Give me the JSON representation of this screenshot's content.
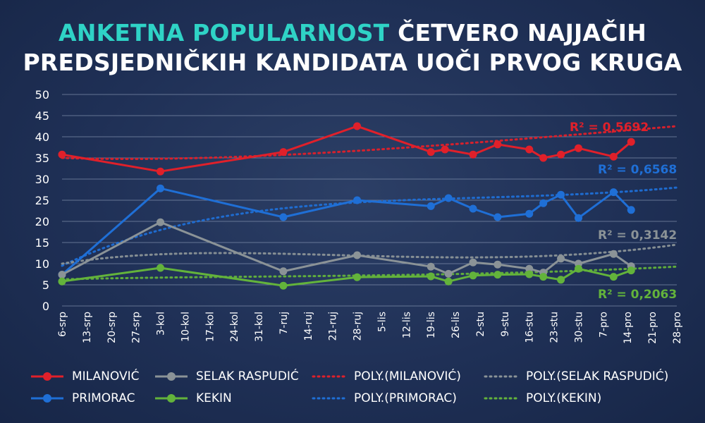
{
  "title": {
    "accent": "ANKETNA POPULARNOST",
    "line1_rest": "ČETVERO NAJJAČIH",
    "line2": "PREDSJEDNIČKIH KANDIDATA UOČI PRVOG KRUGA"
  },
  "colors": {
    "milanovic": "#e0202a",
    "primorac": "#1f6fd6",
    "selak": "#8b9397",
    "kekin": "#63b33b",
    "grid": "#8a99b5",
    "text": "#ffffff"
  },
  "chart_data": {
    "type": "line",
    "ylim": [
      0,
      50
    ],
    "yticks": [
      0,
      5,
      10,
      15,
      20,
      25,
      30,
      35,
      40,
      45,
      50
    ],
    "xticks": [
      "6-srp",
      "13-srp",
      "20-srp",
      "27-srp",
      "3-kol",
      "10-kol",
      "17-kol",
      "24-kol",
      "31-kol",
      "7-ruj",
      "14-ruj",
      "21-ruj",
      "28-ruj",
      "5-lis",
      "12-lis",
      "19-lis",
      "26-lis",
      "2-stu",
      "9-stu",
      "16-stu",
      "23-stu",
      "30-stu",
      "7-pro",
      "14-pro",
      "21-pro",
      "28-pro"
    ],
    "x_unit": "day of 2024 (0 = 6-srp)",
    "series": [
      {
        "name": "MILANOVIĆ",
        "color_key": "milanovic",
        "points": [
          [
            0,
            35.8
          ],
          [
            28,
            31.8
          ],
          [
            63,
            36.4
          ],
          [
            84,
            42.5
          ],
          [
            105,
            36.4
          ],
          [
            109,
            37.0
          ],
          [
            117,
            35.8
          ],
          [
            124,
            38.2
          ],
          [
            133,
            37.0
          ],
          [
            137,
            35.0
          ],
          [
            142,
            35.8
          ],
          [
            147,
            37.3
          ],
          [
            157,
            35.3
          ],
          [
            162,
            38.8
          ]
        ],
        "trend": {
          "name": "POLY.(MILANOVIĆ)",
          "r2": "R² = 0,5692",
          "ctrl": [
            [
              0,
              35.0
            ],
            [
              50,
              33.7
            ],
            [
              110,
              38.0
            ],
            [
              175,
              42.5
            ]
          ]
        }
      },
      {
        "name": "PRIMORAC",
        "color_key": "primorac",
        "points": [
          [
            0,
            7.4
          ],
          [
            28,
            27.8
          ],
          [
            63,
            21.0
          ],
          [
            84,
            25.0
          ],
          [
            105,
            23.6
          ],
          [
            110,
            25.5
          ],
          [
            117,
            23.0
          ],
          [
            124,
            21.0
          ],
          [
            133,
            21.8
          ],
          [
            137,
            24.3
          ],
          [
            142,
            26.3
          ],
          [
            147,
            20.8
          ],
          [
            157,
            26.9
          ],
          [
            162,
            22.7
          ]
        ],
        "trend": {
          "name": "POLY.(PRIMORAC)",
          "r2": "R² = 0,6568",
          "ctrl": [
            [
              0,
              9.5
            ],
            [
              50,
              29.5
            ],
            [
              110,
              23.0
            ],
            [
              175,
              28.0
            ]
          ]
        }
      },
      {
        "name": "SELAK RASPUDIĆ",
        "color_key": "selak",
        "points": [
          [
            0,
            7.4
          ],
          [
            28,
            19.8
          ],
          [
            63,
            8.2
          ],
          [
            84,
            12.0
          ],
          [
            105,
            9.3
          ],
          [
            110,
            7.6
          ],
          [
            117,
            10.3
          ],
          [
            124,
            9.8
          ],
          [
            133,
            8.8
          ],
          [
            137,
            7.9
          ],
          [
            142,
            11.2
          ],
          [
            147,
            10.0
          ],
          [
            157,
            12.3
          ],
          [
            162,
            9.4
          ]
        ],
        "trend": {
          "name": "POLY.(SELAK RASPUDIĆ)",
          "r2": "R² = 0,3142",
          "ctrl": [
            [
              0,
              10.0
            ],
            [
              50,
              16.7
            ],
            [
              110,
              7.0
            ],
            [
              175,
              14.5
            ]
          ]
        }
      },
      {
        "name": "KEKIN",
        "color_key": "kekin",
        "points": [
          [
            0,
            5.8
          ],
          [
            28,
            9.0
          ],
          [
            63,
            4.8
          ],
          [
            84,
            6.8
          ],
          [
            105,
            7.0
          ],
          [
            110,
            5.8
          ],
          [
            117,
            7.2
          ],
          [
            124,
            7.4
          ],
          [
            133,
            7.5
          ],
          [
            137,
            6.9
          ],
          [
            142,
            6.2
          ],
          [
            147,
            8.8
          ],
          [
            157,
            6.9
          ],
          [
            162,
            8.4
          ]
        ],
        "trend": {
          "name": "POLY.(KEKIN)",
          "r2": "R² = 0,2063",
          "ctrl": [
            [
              0,
              6.3
            ],
            [
              50,
              7.3
            ],
            [
              110,
              6.6
            ],
            [
              175,
              9.3
            ]
          ]
        }
      }
    ]
  },
  "legend": [
    {
      "label": "MILANOVIĆ",
      "color_key": "milanovic",
      "style": "marker"
    },
    {
      "label": "SELAK RASPUDIĆ",
      "color_key": "selak",
      "style": "marker"
    },
    {
      "label": "POLY.(MILANOVIĆ)",
      "color_key": "milanovic",
      "style": "dotted"
    },
    {
      "label": "POLY.(SELAK RASPUDIĆ)",
      "color_key": "selak",
      "style": "dotted"
    },
    {
      "label": "PRIMORAC",
      "color_key": "primorac",
      "style": "marker"
    },
    {
      "label": "KEKIN",
      "color_key": "kekin",
      "style": "marker"
    },
    {
      "label": "POLY.(PRIMORAC)",
      "color_key": "primorac",
      "style": "dotted"
    },
    {
      "label": "POLY.(KEKIN)",
      "color_key": "kekin",
      "style": "dotted"
    }
  ]
}
